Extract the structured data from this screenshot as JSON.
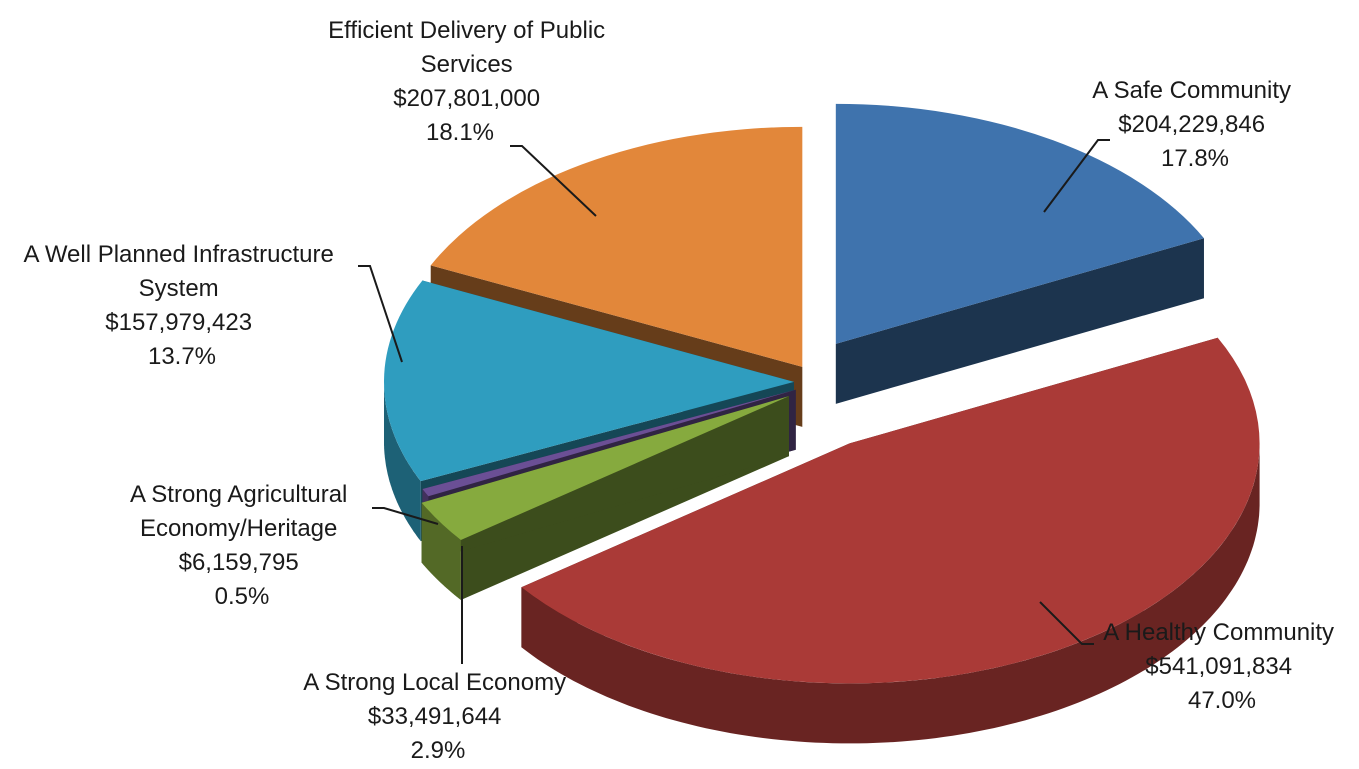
{
  "chart_data": {
    "type": "pie",
    "style": "3d-exploded",
    "title": "",
    "start_angle": 90,
    "direction": "clockwise",
    "colors_shown": {
      "A Safe Community": "#3f73ad",
      "A Healthy Community": "#aa3a37",
      "A Strong Local Economy": "#86aa3e",
      "A Strong Agricultural Economy/Heritage": "#6b4f95",
      "A Well Planned Infrastructure System": "#2f9dbf",
      "Efficient Delivery of Public Services": "#e2873a"
    },
    "slices": [
      {
        "category": "A Safe Community",
        "value": 204229846,
        "amount_label": "$204,229,846",
        "percent": 17.8,
        "percent_label": "17.8%",
        "color": "#3f73ad",
        "explode": 0.05
      },
      {
        "category": "A Healthy Community",
        "value": 541091834,
        "amount_label": "$541,091,834",
        "percent": 47.0,
        "percent_label": "47.0%",
        "color": "#aa3a37",
        "explode": 0.08
      },
      {
        "category": "A Strong Local Economy",
        "value": 33491644,
        "amount_label": "$33,491,644",
        "percent": 2.9,
        "percent_label": "2.9%",
        "color": "#86aa3e",
        "explode": 0.03
      },
      {
        "category": "A Strong Agricultural Economy/Heritage",
        "value": 6159795,
        "amount_label": "$6,159,795",
        "percent": 0.5,
        "percent_label": "0.5%",
        "color": "#6b4f95",
        "explode": 0.02
      },
      {
        "category": "A Well Planned Infrastructure System",
        "value": 157979423,
        "amount_label": "$157,979,423",
        "percent": 13.7,
        "percent_label": "13.7%",
        "color": "#2f9dbf",
        "explode": 0.02
      },
      {
        "category": "Efficient Delivery of Public Services",
        "value": 207801000,
        "amount_label": "$207,801,000",
        "percent": 18.1,
        "percent_label": "18.1%",
        "color": "#e2873a",
        "explode": 0.02
      }
    ]
  }
}
